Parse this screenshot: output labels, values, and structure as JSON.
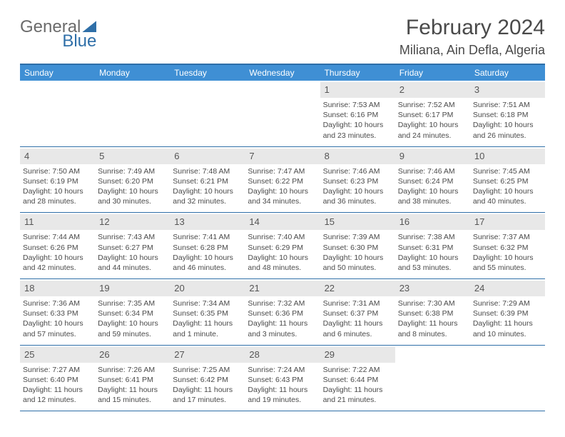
{
  "logo": {
    "word1": "General",
    "word2": "Blue"
  },
  "title": "February 2024",
  "location": "Miliana, Ain Defla, Algeria",
  "colors": {
    "header_bg": "#3f8fd4",
    "border": "#2f6fa8",
    "daynum_bg": "#e8e8e8",
    "text": "#4a4a4a"
  },
  "weekdays": [
    "Sunday",
    "Monday",
    "Tuesday",
    "Wednesday",
    "Thursday",
    "Friday",
    "Saturday"
  ],
  "weeks": [
    [
      null,
      null,
      null,
      null,
      {
        "n": "1",
        "sr": "7:53 AM",
        "ss": "6:16 PM",
        "dl": "10 hours and 23 minutes."
      },
      {
        "n": "2",
        "sr": "7:52 AM",
        "ss": "6:17 PM",
        "dl": "10 hours and 24 minutes."
      },
      {
        "n": "3",
        "sr": "7:51 AM",
        "ss": "6:18 PM",
        "dl": "10 hours and 26 minutes."
      }
    ],
    [
      {
        "n": "4",
        "sr": "7:50 AM",
        "ss": "6:19 PM",
        "dl": "10 hours and 28 minutes."
      },
      {
        "n": "5",
        "sr": "7:49 AM",
        "ss": "6:20 PM",
        "dl": "10 hours and 30 minutes."
      },
      {
        "n": "6",
        "sr": "7:48 AM",
        "ss": "6:21 PM",
        "dl": "10 hours and 32 minutes."
      },
      {
        "n": "7",
        "sr": "7:47 AM",
        "ss": "6:22 PM",
        "dl": "10 hours and 34 minutes."
      },
      {
        "n": "8",
        "sr": "7:46 AM",
        "ss": "6:23 PM",
        "dl": "10 hours and 36 minutes."
      },
      {
        "n": "9",
        "sr": "7:46 AM",
        "ss": "6:24 PM",
        "dl": "10 hours and 38 minutes."
      },
      {
        "n": "10",
        "sr": "7:45 AM",
        "ss": "6:25 PM",
        "dl": "10 hours and 40 minutes."
      }
    ],
    [
      {
        "n": "11",
        "sr": "7:44 AM",
        "ss": "6:26 PM",
        "dl": "10 hours and 42 minutes."
      },
      {
        "n": "12",
        "sr": "7:43 AM",
        "ss": "6:27 PM",
        "dl": "10 hours and 44 minutes."
      },
      {
        "n": "13",
        "sr": "7:41 AM",
        "ss": "6:28 PM",
        "dl": "10 hours and 46 minutes."
      },
      {
        "n": "14",
        "sr": "7:40 AM",
        "ss": "6:29 PM",
        "dl": "10 hours and 48 minutes."
      },
      {
        "n": "15",
        "sr": "7:39 AM",
        "ss": "6:30 PM",
        "dl": "10 hours and 50 minutes."
      },
      {
        "n": "16",
        "sr": "7:38 AM",
        "ss": "6:31 PM",
        "dl": "10 hours and 53 minutes."
      },
      {
        "n": "17",
        "sr": "7:37 AM",
        "ss": "6:32 PM",
        "dl": "10 hours and 55 minutes."
      }
    ],
    [
      {
        "n": "18",
        "sr": "7:36 AM",
        "ss": "6:33 PM",
        "dl": "10 hours and 57 minutes."
      },
      {
        "n": "19",
        "sr": "7:35 AM",
        "ss": "6:34 PM",
        "dl": "10 hours and 59 minutes."
      },
      {
        "n": "20",
        "sr": "7:34 AM",
        "ss": "6:35 PM",
        "dl": "11 hours and 1 minute."
      },
      {
        "n": "21",
        "sr": "7:32 AM",
        "ss": "6:36 PM",
        "dl": "11 hours and 3 minutes."
      },
      {
        "n": "22",
        "sr": "7:31 AM",
        "ss": "6:37 PM",
        "dl": "11 hours and 6 minutes."
      },
      {
        "n": "23",
        "sr": "7:30 AM",
        "ss": "6:38 PM",
        "dl": "11 hours and 8 minutes."
      },
      {
        "n": "24",
        "sr": "7:29 AM",
        "ss": "6:39 PM",
        "dl": "11 hours and 10 minutes."
      }
    ],
    [
      {
        "n": "25",
        "sr": "7:27 AM",
        "ss": "6:40 PM",
        "dl": "11 hours and 12 minutes."
      },
      {
        "n": "26",
        "sr": "7:26 AM",
        "ss": "6:41 PM",
        "dl": "11 hours and 15 minutes."
      },
      {
        "n": "27",
        "sr": "7:25 AM",
        "ss": "6:42 PM",
        "dl": "11 hours and 17 minutes."
      },
      {
        "n": "28",
        "sr": "7:24 AM",
        "ss": "6:43 PM",
        "dl": "11 hours and 19 minutes."
      },
      {
        "n": "29",
        "sr": "7:22 AM",
        "ss": "6:44 PM",
        "dl": "11 hours and 21 minutes."
      },
      null,
      null
    ]
  ],
  "labels": {
    "sunrise": "Sunrise:",
    "sunset": "Sunset:",
    "daylight": "Daylight:"
  }
}
